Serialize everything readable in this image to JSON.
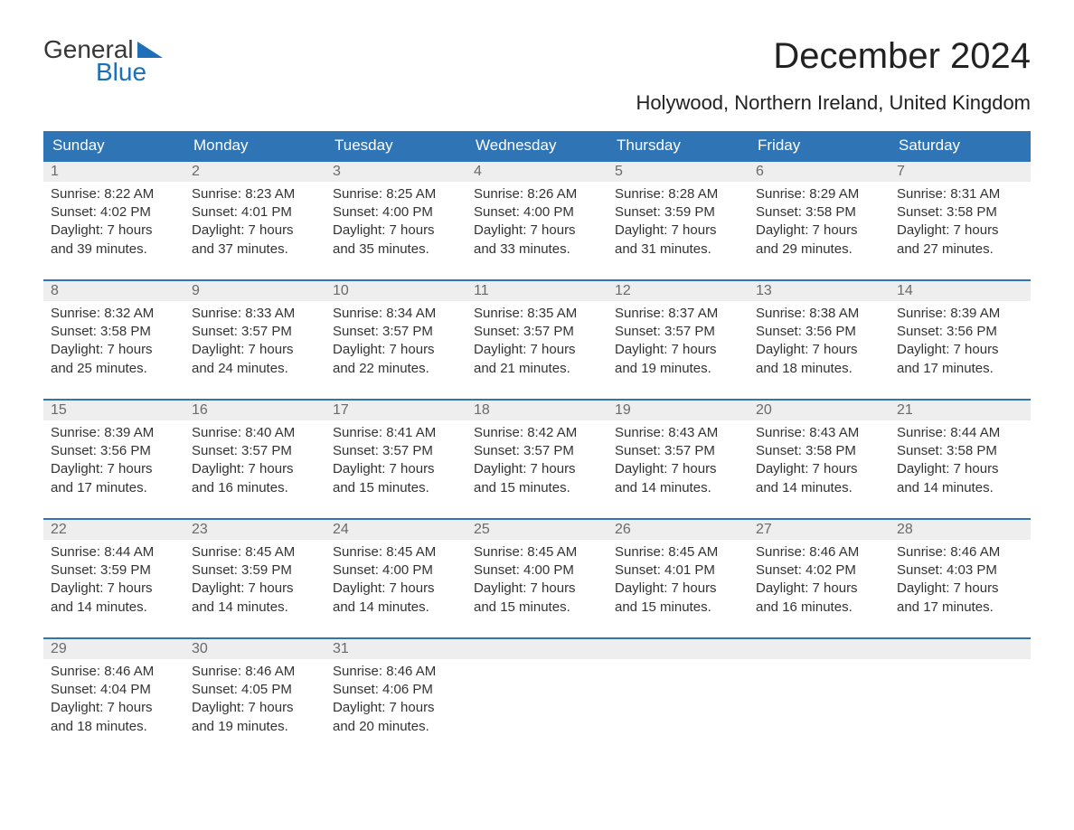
{
  "brand": {
    "line1": "General",
    "line2": "Blue",
    "accent_color": "#1d6fb8",
    "text_color": "#373737"
  },
  "title": "December 2024",
  "subtitle": "Holywood, Northern Ireland, United Kingdom",
  "colors": {
    "header_bg": "#2f74b5",
    "header_text": "#ffffff",
    "daynum_bg": "#eeeeee",
    "daynum_text": "#6a6a6a",
    "body_text": "#333333",
    "week_border": "#2f74b5",
    "page_bg": "#ffffff"
  },
  "fonts": {
    "title_pt": 40,
    "subtitle_pt": 22,
    "dow_pt": 17,
    "daynum_pt": 16,
    "body_pt": 15
  },
  "days_of_week": [
    "Sunday",
    "Monday",
    "Tuesday",
    "Wednesday",
    "Thursday",
    "Friday",
    "Saturday"
  ],
  "weeks": [
    [
      {
        "n": "1",
        "sunrise": "Sunrise: 8:22 AM",
        "sunset": "Sunset: 4:02 PM",
        "d1": "Daylight: 7 hours",
        "d2": "and 39 minutes."
      },
      {
        "n": "2",
        "sunrise": "Sunrise: 8:23 AM",
        "sunset": "Sunset: 4:01 PM",
        "d1": "Daylight: 7 hours",
        "d2": "and 37 minutes."
      },
      {
        "n": "3",
        "sunrise": "Sunrise: 8:25 AM",
        "sunset": "Sunset: 4:00 PM",
        "d1": "Daylight: 7 hours",
        "d2": "and 35 minutes."
      },
      {
        "n": "4",
        "sunrise": "Sunrise: 8:26 AM",
        "sunset": "Sunset: 4:00 PM",
        "d1": "Daylight: 7 hours",
        "d2": "and 33 minutes."
      },
      {
        "n": "5",
        "sunrise": "Sunrise: 8:28 AM",
        "sunset": "Sunset: 3:59 PM",
        "d1": "Daylight: 7 hours",
        "d2": "and 31 minutes."
      },
      {
        "n": "6",
        "sunrise": "Sunrise: 8:29 AM",
        "sunset": "Sunset: 3:58 PM",
        "d1": "Daylight: 7 hours",
        "d2": "and 29 minutes."
      },
      {
        "n": "7",
        "sunrise": "Sunrise: 8:31 AM",
        "sunset": "Sunset: 3:58 PM",
        "d1": "Daylight: 7 hours",
        "d2": "and 27 minutes."
      }
    ],
    [
      {
        "n": "8",
        "sunrise": "Sunrise: 8:32 AM",
        "sunset": "Sunset: 3:58 PM",
        "d1": "Daylight: 7 hours",
        "d2": "and 25 minutes."
      },
      {
        "n": "9",
        "sunrise": "Sunrise: 8:33 AM",
        "sunset": "Sunset: 3:57 PM",
        "d1": "Daylight: 7 hours",
        "d2": "and 24 minutes."
      },
      {
        "n": "10",
        "sunrise": "Sunrise: 8:34 AM",
        "sunset": "Sunset: 3:57 PM",
        "d1": "Daylight: 7 hours",
        "d2": "and 22 minutes."
      },
      {
        "n": "11",
        "sunrise": "Sunrise: 8:35 AM",
        "sunset": "Sunset: 3:57 PM",
        "d1": "Daylight: 7 hours",
        "d2": "and 21 minutes."
      },
      {
        "n": "12",
        "sunrise": "Sunrise: 8:37 AM",
        "sunset": "Sunset: 3:57 PM",
        "d1": "Daylight: 7 hours",
        "d2": "and 19 minutes."
      },
      {
        "n": "13",
        "sunrise": "Sunrise: 8:38 AM",
        "sunset": "Sunset: 3:56 PM",
        "d1": "Daylight: 7 hours",
        "d2": "and 18 minutes."
      },
      {
        "n": "14",
        "sunrise": "Sunrise: 8:39 AM",
        "sunset": "Sunset: 3:56 PM",
        "d1": "Daylight: 7 hours",
        "d2": "and 17 minutes."
      }
    ],
    [
      {
        "n": "15",
        "sunrise": "Sunrise: 8:39 AM",
        "sunset": "Sunset: 3:56 PM",
        "d1": "Daylight: 7 hours",
        "d2": "and 17 minutes."
      },
      {
        "n": "16",
        "sunrise": "Sunrise: 8:40 AM",
        "sunset": "Sunset: 3:57 PM",
        "d1": "Daylight: 7 hours",
        "d2": "and 16 minutes."
      },
      {
        "n": "17",
        "sunrise": "Sunrise: 8:41 AM",
        "sunset": "Sunset: 3:57 PM",
        "d1": "Daylight: 7 hours",
        "d2": "and 15 minutes."
      },
      {
        "n": "18",
        "sunrise": "Sunrise: 8:42 AM",
        "sunset": "Sunset: 3:57 PM",
        "d1": "Daylight: 7 hours",
        "d2": "and 15 minutes."
      },
      {
        "n": "19",
        "sunrise": "Sunrise: 8:43 AM",
        "sunset": "Sunset: 3:57 PM",
        "d1": "Daylight: 7 hours",
        "d2": "and 14 minutes."
      },
      {
        "n": "20",
        "sunrise": "Sunrise: 8:43 AM",
        "sunset": "Sunset: 3:58 PM",
        "d1": "Daylight: 7 hours",
        "d2": "and 14 minutes."
      },
      {
        "n": "21",
        "sunrise": "Sunrise: 8:44 AM",
        "sunset": "Sunset: 3:58 PM",
        "d1": "Daylight: 7 hours",
        "d2": "and 14 minutes."
      }
    ],
    [
      {
        "n": "22",
        "sunrise": "Sunrise: 8:44 AM",
        "sunset": "Sunset: 3:59 PM",
        "d1": "Daylight: 7 hours",
        "d2": "and 14 minutes."
      },
      {
        "n": "23",
        "sunrise": "Sunrise: 8:45 AM",
        "sunset": "Sunset: 3:59 PM",
        "d1": "Daylight: 7 hours",
        "d2": "and 14 minutes."
      },
      {
        "n": "24",
        "sunrise": "Sunrise: 8:45 AM",
        "sunset": "Sunset: 4:00 PM",
        "d1": "Daylight: 7 hours",
        "d2": "and 14 minutes."
      },
      {
        "n": "25",
        "sunrise": "Sunrise: 8:45 AM",
        "sunset": "Sunset: 4:00 PM",
        "d1": "Daylight: 7 hours",
        "d2": "and 15 minutes."
      },
      {
        "n": "26",
        "sunrise": "Sunrise: 8:45 AM",
        "sunset": "Sunset: 4:01 PM",
        "d1": "Daylight: 7 hours",
        "d2": "and 15 minutes."
      },
      {
        "n": "27",
        "sunrise": "Sunrise: 8:46 AM",
        "sunset": "Sunset: 4:02 PM",
        "d1": "Daylight: 7 hours",
        "d2": "and 16 minutes."
      },
      {
        "n": "28",
        "sunrise": "Sunrise: 8:46 AM",
        "sunset": "Sunset: 4:03 PM",
        "d1": "Daylight: 7 hours",
        "d2": "and 17 minutes."
      }
    ],
    [
      {
        "n": "29",
        "sunrise": "Sunrise: 8:46 AM",
        "sunset": "Sunset: 4:04 PM",
        "d1": "Daylight: 7 hours",
        "d2": "and 18 minutes."
      },
      {
        "n": "30",
        "sunrise": "Sunrise: 8:46 AM",
        "sunset": "Sunset: 4:05 PM",
        "d1": "Daylight: 7 hours",
        "d2": "and 19 minutes."
      },
      {
        "n": "31",
        "sunrise": "Sunrise: 8:46 AM",
        "sunset": "Sunset: 4:06 PM",
        "d1": "Daylight: 7 hours",
        "d2": "and 20 minutes."
      },
      {
        "n": "",
        "sunrise": "",
        "sunset": "",
        "d1": "",
        "d2": "",
        "empty": true
      },
      {
        "n": "",
        "sunrise": "",
        "sunset": "",
        "d1": "",
        "d2": "",
        "empty": true
      },
      {
        "n": "",
        "sunrise": "",
        "sunset": "",
        "d1": "",
        "d2": "",
        "empty": true
      },
      {
        "n": "",
        "sunrise": "",
        "sunset": "",
        "d1": "",
        "d2": "",
        "empty": true
      }
    ]
  ]
}
